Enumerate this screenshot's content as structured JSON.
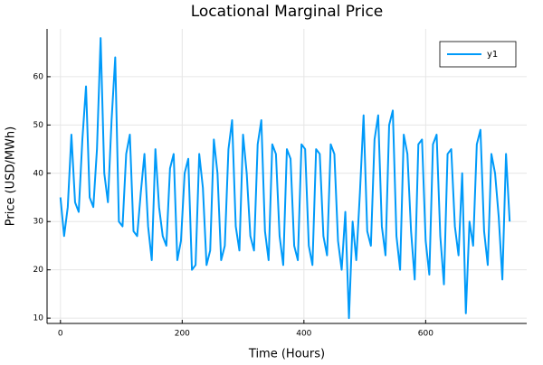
{
  "chart_data": {
    "type": "line",
    "title": "Locational Marginal Price",
    "x_label": "Time (Hours)",
    "y_label": "Price (USD/MWh)",
    "x": [
      0,
      6,
      12,
      18,
      24,
      30,
      36,
      42,
      48,
      54,
      60,
      66,
      72,
      78,
      84,
      90,
      96,
      102,
      108,
      114,
      120,
      126,
      132,
      138,
      144,
      150,
      156,
      162,
      168,
      174,
      180,
      186,
      192,
      198,
      204,
      210,
      216,
      222,
      228,
      234,
      240,
      246,
      252,
      258,
      264,
      270,
      276,
      282,
      288,
      294,
      300,
      306,
      312,
      318,
      324,
      330,
      336,
      342,
      348,
      354,
      360,
      366,
      372,
      378,
      384,
      390,
      396,
      402,
      408,
      414,
      420,
      426,
      432,
      438,
      444,
      450,
      456,
      462,
      468,
      474,
      480,
      486,
      492,
      498,
      504,
      510,
      516,
      522,
      528,
      534,
      540,
      546,
      552,
      558,
      564,
      570,
      576,
      582,
      588,
      594,
      600,
      606,
      612,
      618,
      624,
      630,
      636,
      642,
      648,
      654,
      660,
      666,
      672,
      678,
      684,
      690,
      696,
      702,
      708,
      714,
      720,
      726,
      732,
      738
    ],
    "series": [
      {
        "name": "y1",
        "color": "#009af9",
        "values": [
          35,
          27,
          33,
          48,
          34,
          32,
          47,
          58,
          35,
          33,
          45,
          68,
          40,
          34,
          51,
          64,
          30,
          29,
          44,
          48,
          28,
          27,
          36,
          44,
          29,
          22,
          45,
          33,
          27,
          25,
          41,
          44,
          22,
          26,
          40,
          43,
          20,
          21,
          44,
          37,
          21,
          24,
          47,
          40,
          22,
          25,
          45,
          51,
          29,
          24,
          48,
          40,
          27,
          24,
          46,
          51,
          28,
          22,
          46,
          44,
          27,
          21,
          45,
          43,
          25,
          22,
          46,
          45,
          25,
          21,
          45,
          44,
          27,
          23,
          46,
          44,
          26,
          20,
          32,
          10,
          30,
          22,
          36,
          52,
          28,
          25,
          47,
          52,
          29,
          23,
          50,
          53,
          27,
          20,
          48,
          44,
          28,
          18,
          46,
          47,
          26,
          19,
          46,
          48,
          27,
          17,
          44,
          45,
          29,
          23,
          40,
          11,
          30,
          25,
          46,
          49,
          28,
          21,
          44,
          40,
          31,
          18,
          44,
          30
        ]
      }
    ],
    "xlim": [
      -22,
      766
    ],
    "ylim": [
      8.9,
      69.9
    ],
    "xticks": [
      0,
      200,
      400,
      600
    ],
    "yticks": [
      10,
      20,
      30,
      40,
      50,
      60
    ],
    "grid": true,
    "legend": "top-right"
  }
}
